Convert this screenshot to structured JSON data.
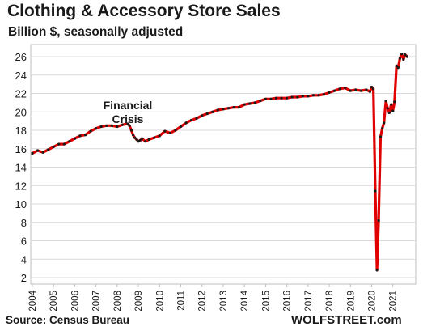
{
  "title": "Clothing & Accessory Store Sales",
  "subtitle": "Billion $, seasonally adjusted",
  "source": "Source: Census Bureau",
  "brand": "WOLFSTREET.com",
  "colors": {
    "line": "#e00000",
    "marker": "#1a1a1a",
    "grid": "#d9d9d9",
    "axis": "#bfbfbf"
  },
  "chart_data": {
    "type": "line",
    "title": "Clothing & Accessory Store Sales",
    "subtitle": "Billion $, seasonally adjusted",
    "xlabel": "",
    "ylabel": "",
    "ylim": [
      2,
      26
    ],
    "yticks": [
      2,
      4,
      6,
      8,
      10,
      12,
      14,
      16,
      18,
      20,
      22,
      24,
      26
    ],
    "xticks": [
      "2004",
      "2005",
      "2006",
      "2007",
      "2008",
      "2009",
      "2010",
      "2011",
      "2012",
      "2013",
      "2014",
      "2015",
      "2016",
      "2017",
      "2018",
      "2019",
      "2020",
      "2021"
    ],
    "grid": true,
    "legend": "none",
    "annotations": [
      {
        "text": [
          "Financial",
          "Crisis"
        ],
        "x": 2008.5,
        "y": 20.3
      }
    ],
    "series": [
      {
        "x": [
          2004.0,
          2004.25,
          2004.5,
          2004.75,
          2005.0,
          2005.25,
          2005.5,
          2005.75,
          2006.0,
          2006.25,
          2006.5,
          2006.75,
          2007.0,
          2007.25,
          2007.5,
          2007.75,
          2008.0,
          2008.25,
          2008.5,
          2008.58,
          2008.67,
          2008.75,
          2008.83,
          2008.92,
          2009.0,
          2009.08,
          2009.17,
          2009.33,
          2009.5,
          2009.75,
          2010.0,
          2010.25,
          2010.5,
          2010.75,
          2011.0,
          2011.25,
          2011.5,
          2011.75,
          2012.0,
          2012.25,
          2012.5,
          2012.75,
          2013.0,
          2013.25,
          2013.5,
          2013.75,
          2014.0,
          2014.25,
          2014.5,
          2014.75,
          2015.0,
          2015.25,
          2015.5,
          2015.75,
          2016.0,
          2016.25,
          2016.5,
          2016.75,
          2017.0,
          2017.25,
          2017.5,
          2017.75,
          2018.0,
          2018.25,
          2018.5,
          2018.75,
          2019.0,
          2019.25,
          2019.5,
          2019.75,
          2019.92,
          2020.0,
          2020.08,
          2020.17,
          2020.25,
          2020.33,
          2020.42,
          2020.5,
          2020.58,
          2020.67,
          2020.75,
          2020.83,
          2020.92,
          2021.0,
          2021.08,
          2021.17,
          2021.25,
          2021.33,
          2021.42,
          2021.5,
          2021.58,
          2021.67
        ],
        "y": [
          15.5,
          15.8,
          15.6,
          15.9,
          16.2,
          16.5,
          16.5,
          16.8,
          17.1,
          17.4,
          17.5,
          17.9,
          18.2,
          18.4,
          18.5,
          18.5,
          18.4,
          18.6,
          18.7,
          18.5,
          18.0,
          17.5,
          17.2,
          17.0,
          16.8,
          16.9,
          17.1,
          16.8,
          17.0,
          17.2,
          17.4,
          17.9,
          17.7,
          18.0,
          18.4,
          18.8,
          19.1,
          19.3,
          19.6,
          19.8,
          20.0,
          20.2,
          20.3,
          20.4,
          20.5,
          20.5,
          20.8,
          20.9,
          21.0,
          21.2,
          21.4,
          21.4,
          21.5,
          21.5,
          21.5,
          21.6,
          21.6,
          21.7,
          21.7,
          21.8,
          21.8,
          21.9,
          22.1,
          22.3,
          22.5,
          22.6,
          22.3,
          22.4,
          22.3,
          22.4,
          22.2,
          22.7,
          22.5,
          11.4,
          2.8,
          8.2,
          17.3,
          18.2,
          18.8,
          21.2,
          20.4,
          19.9,
          20.8,
          20.1,
          21.1,
          25.0,
          24.8,
          25.8,
          26.3,
          25.7,
          26.2,
          26.0
        ]
      }
    ]
  }
}
